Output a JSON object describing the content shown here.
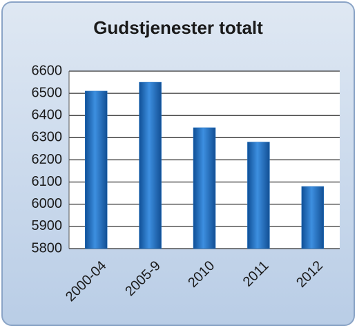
{
  "chart_data": {
    "type": "bar",
    "title": "Gudstjenester totalt",
    "categories": [
      "2000-04",
      "2005-9",
      "2010",
      "2011",
      "2012"
    ],
    "values": [
      6510,
      6550,
      6345,
      6280,
      6080
    ],
    "color": "#1f6fc0",
    "ylim": [
      5800,
      6600
    ],
    "yticks": [
      5800,
      5900,
      6000,
      6100,
      6200,
      6300,
      6400,
      6500,
      6600
    ],
    "grid": true
  }
}
